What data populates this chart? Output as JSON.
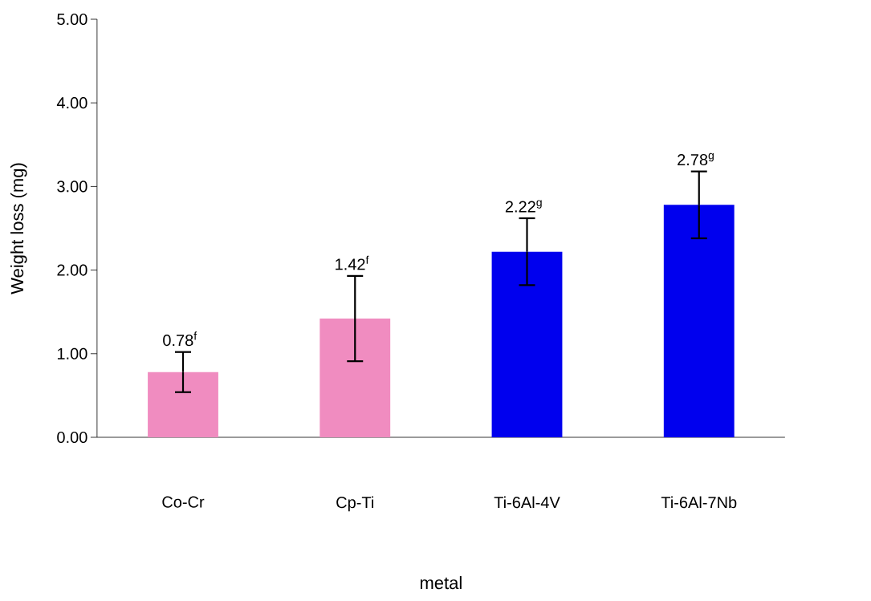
{
  "chart_data": {
    "type": "bar",
    "xlabel": "metal",
    "ylabel": "Weight loss (mg)",
    "categories": [
      "Co-Cr",
      "Cp-Ti",
      "Ti-6Al-4V",
      "Ti-6Al-7Nb"
    ],
    "values": [
      0.78,
      1.42,
      2.22,
      2.78
    ],
    "errors": [
      0.24,
      0.51,
      0.4,
      0.4
    ],
    "colors": [
      "#f08cc0",
      "#f08cc0",
      "#0000ee",
      "#0000ee"
    ],
    "value_labels": [
      "0.78$^{f}$",
      "1.42$^{f}$",
      "2.22$^{g}$",
      "2.78$^{g}$"
    ],
    "ylim": [
      0,
      5
    ],
    "yticks": [
      {
        "value": 0,
        "label": "0.00"
      },
      {
        "value": 1,
        "label": "1.00"
      },
      {
        "value": 2,
        "label": "2.00"
      },
      {
        "value": 3,
        "label": "3.00"
      },
      {
        "value": 4,
        "label": "4.00"
      },
      {
        "value": 5,
        "label": "5.00"
      }
    ]
  }
}
